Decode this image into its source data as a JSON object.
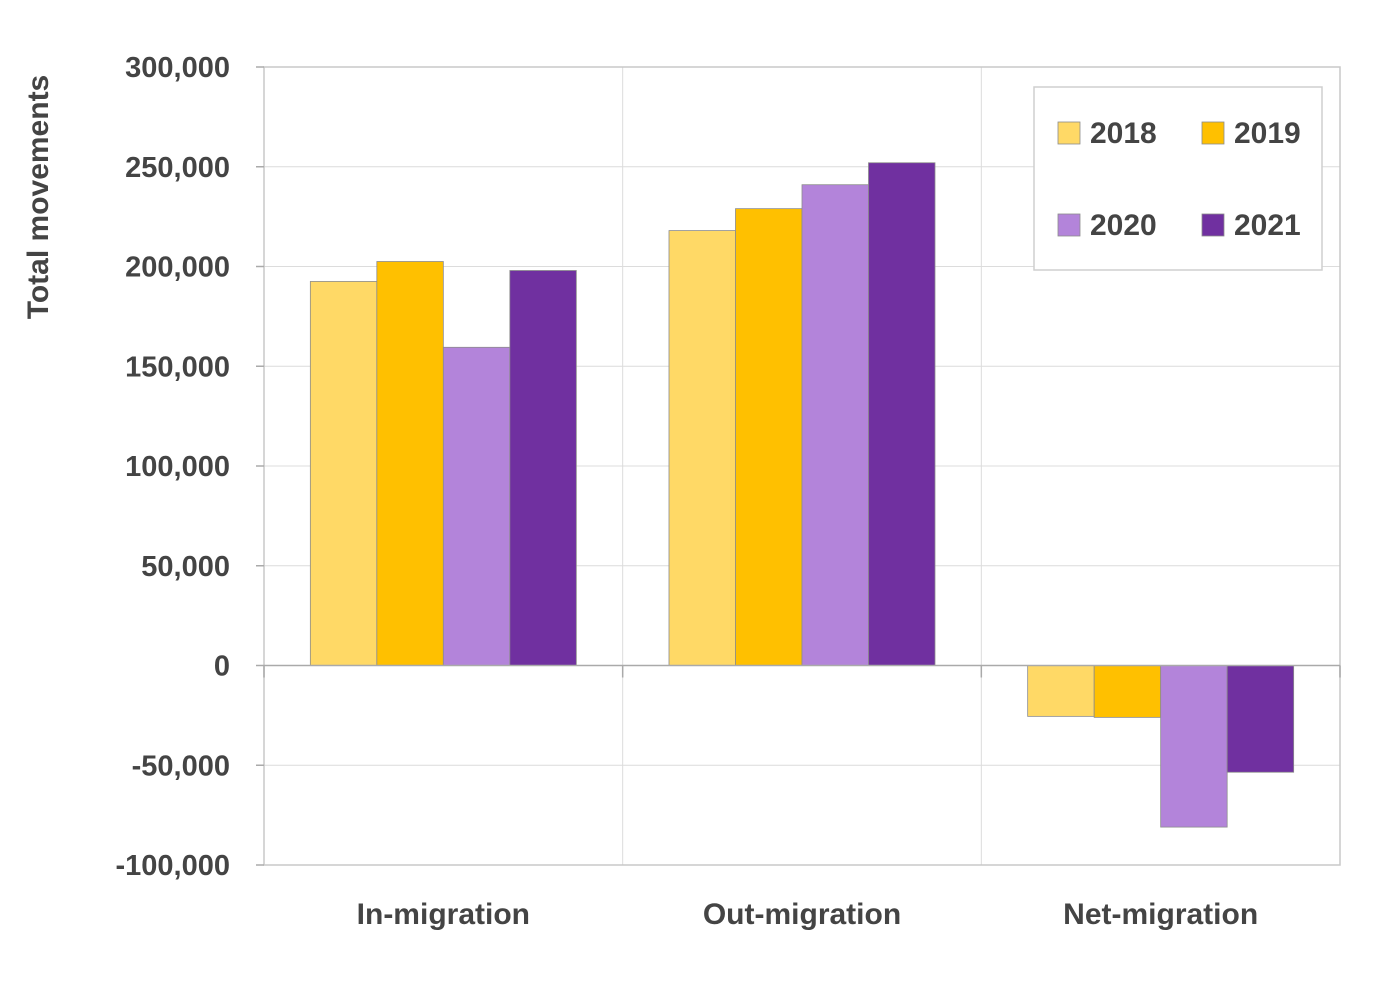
{
  "chart_data": {
    "type": "bar",
    "title": "",
    "xlabel": "",
    "ylabel": "Total movements",
    "ylim": [
      -100000,
      300000
    ],
    "yticks": [
      -100000,
      -50000,
      0,
      50000,
      100000,
      150000,
      200000,
      250000,
      300000
    ],
    "ytick_labels": [
      "-100,000",
      "-50,000",
      "0",
      "50,000",
      "100,000",
      "150,000",
      "200,000",
      "250,000",
      "300,000"
    ],
    "grid": true,
    "legend_position": "top-right",
    "categories": [
      "In-migration",
      "Out-migration",
      "Net-migration"
    ],
    "series": [
      {
        "name": "2018",
        "color": "#FFD966",
        "values": [
          192500,
          218000,
          -25500
        ]
      },
      {
        "name": "2019",
        "color": "#FFC000",
        "values": [
          202500,
          229000,
          -26000
        ]
      },
      {
        "name": "2020",
        "color": "#B384DA",
        "values": [
          159500,
          241000,
          -81000
        ]
      },
      {
        "name": "2021",
        "color": "#7030A0",
        "values": [
          198000,
          252000,
          -53500
        ]
      }
    ]
  }
}
